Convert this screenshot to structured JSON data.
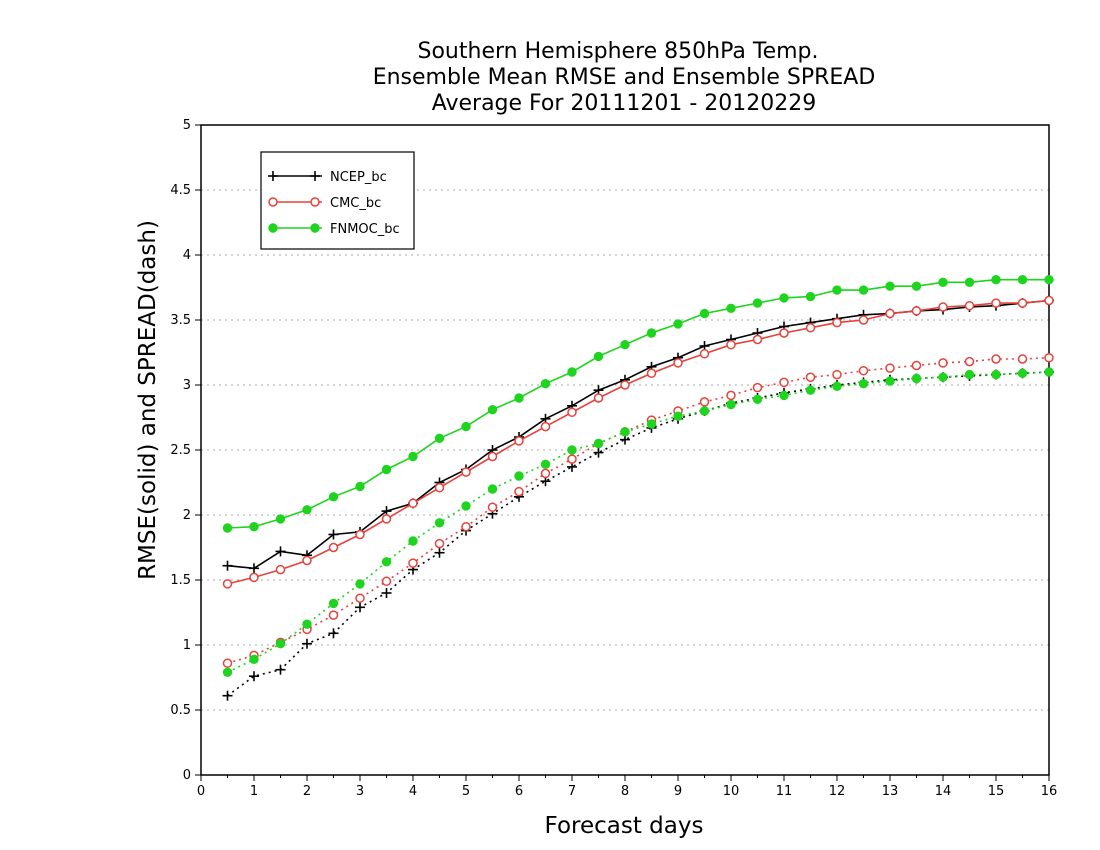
{
  "chart_data": {
    "type": "line",
    "title_lines": [
      "Southern Hemisphere 850hPa Temp.",
      "Ensemble Mean RMSE and Ensemble SPREAD",
      "Average For 20111201 - 20120229"
    ],
    "xlabel": "Forecast days",
    "ylabel": "RMSE(solid) and SPREAD(dash)",
    "xlim": [
      0,
      16
    ],
    "ylim": [
      0,
      5
    ],
    "x_ticks": [
      0,
      1,
      2,
      3,
      4,
      5,
      6,
      7,
      8,
      9,
      10,
      11,
      12,
      13,
      14,
      15,
      16
    ],
    "y_ticks": [
      0,
      0.5,
      1,
      1.5,
      2,
      2.5,
      3,
      3.5,
      4,
      4.5,
      5
    ],
    "grid": "horizontal dotted",
    "legend_placement": "top-left",
    "x": [
      0.5,
      1,
      1.5,
      2,
      2.5,
      3,
      3.5,
      4,
      4.5,
      5,
      5.5,
      6,
      6.5,
      7,
      7.5,
      8,
      8.5,
      9,
      9.5,
      10,
      10.5,
      11,
      11.5,
      12,
      12.5,
      13,
      13.5,
      14,
      14.5,
      15,
      15.5,
      16
    ],
    "series": [
      {
        "name": "NCEP_bc",
        "color": "#000000",
        "marker": "plus",
        "rmse": [
          1.61,
          1.59,
          1.72,
          1.69,
          1.85,
          1.87,
          2.03,
          2.09,
          2.25,
          2.35,
          2.5,
          2.6,
          2.74,
          2.84,
          2.96,
          3.04,
          3.14,
          3.21,
          3.3,
          3.35,
          3.4,
          3.45,
          3.48,
          3.51,
          3.54,
          3.55,
          3.57,
          3.58,
          3.6,
          3.61,
          3.63,
          3.65
        ],
        "spread": [
          0.61,
          0.76,
          0.81,
          1.01,
          1.09,
          1.29,
          1.4,
          1.58,
          1.71,
          1.88,
          2.01,
          2.14,
          2.26,
          2.37,
          2.48,
          2.58,
          2.67,
          2.74,
          2.8,
          2.86,
          2.9,
          2.94,
          2.97,
          3.0,
          3.02,
          3.04,
          3.05,
          3.06,
          3.07,
          3.08,
          3.09,
          3.1
        ]
      },
      {
        "name": "CMC_bc",
        "color": "#e8403a",
        "marker": "open-circle",
        "rmse": [
          1.47,
          1.52,
          1.58,
          1.65,
          1.75,
          1.85,
          1.97,
          2.09,
          2.21,
          2.33,
          2.45,
          2.57,
          2.68,
          2.79,
          2.9,
          3.0,
          3.09,
          3.17,
          3.24,
          3.31,
          3.35,
          3.4,
          3.44,
          3.48,
          3.5,
          3.55,
          3.57,
          3.6,
          3.61,
          3.63,
          3.63,
          3.65
        ],
        "spread": [
          0.86,
          0.92,
          1.02,
          1.12,
          1.23,
          1.36,
          1.49,
          1.63,
          1.78,
          1.91,
          2.06,
          2.18,
          2.32,
          2.43,
          2.55,
          2.64,
          2.73,
          2.8,
          2.87,
          2.92,
          2.98,
          3.02,
          3.06,
          3.08,
          3.11,
          3.13,
          3.15,
          3.17,
          3.18,
          3.2,
          3.2,
          3.21
        ]
      },
      {
        "name": "FNMOC_bc",
        "color": "#1fd41f",
        "marker": "filled-circle",
        "rmse": [
          1.9,
          1.91,
          1.97,
          2.04,
          2.14,
          2.22,
          2.35,
          2.45,
          2.59,
          2.68,
          2.81,
          2.9,
          3.01,
          3.1,
          3.22,
          3.31,
          3.4,
          3.47,
          3.55,
          3.59,
          3.63,
          3.67,
          3.68,
          3.73,
          3.73,
          3.76,
          3.76,
          3.79,
          3.79,
          3.81,
          3.81,
          3.81
        ],
        "spread": [
          0.79,
          0.89,
          1.01,
          1.16,
          1.32,
          1.47,
          1.64,
          1.8,
          1.94,
          2.07,
          2.2,
          2.3,
          2.39,
          2.5,
          2.55,
          2.64,
          2.7,
          2.76,
          2.8,
          2.85,
          2.89,
          2.92,
          2.96,
          2.99,
          3.01,
          3.03,
          3.05,
          3.06,
          3.08,
          3.08,
          3.09,
          3.1
        ]
      }
    ]
  }
}
